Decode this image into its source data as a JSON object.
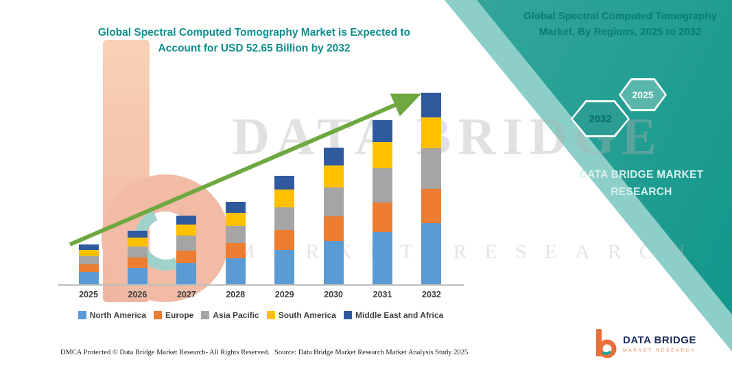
{
  "left_panel": {
    "title": "Global Spectral Computed Tomography Market is Expected to Account for USD 52.65 Billion by 2032",
    "footer_left": "DMCA Protected © Data Bridge Market Research-  All Rights Reserved.",
    "footer_source": "Source: Data Bridge Market Research  Market Analysis Study 2025"
  },
  "right_panel": {
    "title": "Global Spectral Computed Tomography Market, By Regions, 2025 to 2032",
    "hexagons": {
      "back_label": "2032",
      "front_label": "2025"
    },
    "brand_lines": "DATA BRIDGE MARKET RESEARCH"
  },
  "watermark": {
    "line1": "DATA BRIDGE",
    "line2": "MARKET RESEARCH"
  },
  "logo": {
    "name_line": "DATA BRIDGE",
    "sub_line": "MARKET RESEARCH"
  },
  "accent": {
    "teal": "#11968b",
    "arrow_green": "#6fa83f",
    "orange": "#e8703a",
    "navy": "#1d2e5e"
  },
  "chart_data": {
    "type": "bar",
    "stacked": true,
    "title": "Global Spectral Computed Tomography Market is Expected to Account for USD 52.65 Billion by 2032",
    "unit": "USD Billion",
    "categories": [
      "2025",
      "2026",
      "2027",
      "2028",
      "2029",
      "2030",
      "2031",
      "2032"
    ],
    "series": [
      {
        "name": "North America",
        "color": "#5b9bd5",
        "values": [
          3.6,
          4.8,
          6.1,
          7.3,
          9.6,
          12.0,
          14.4,
          16.9
        ]
      },
      {
        "name": "Europe",
        "color": "#ed7d31",
        "values": [
          2.0,
          2.7,
          3.4,
          4.1,
          5.4,
          6.8,
          8.1,
          9.5
        ]
      },
      {
        "name": "Asia Pacific",
        "color": "#a5a5a5",
        "values": [
          2.3,
          3.1,
          4.0,
          4.8,
          6.3,
          7.9,
          9.5,
          11.0
        ]
      },
      {
        "name": "South America",
        "color": "#ffc000",
        "values": [
          1.8,
          2.4,
          3.0,
          3.6,
          4.8,
          6.0,
          7.2,
          8.4
        ]
      },
      {
        "name": "Middle East and Africa",
        "color": "#2f5b9e",
        "values": [
          1.4,
          1.9,
          2.5,
          3.0,
          3.9,
          4.9,
          5.9,
          6.85
        ]
      }
    ],
    "totals": [
      11.1,
      14.9,
      19.0,
      22.8,
      30.0,
      37.6,
      45.1,
      52.65
    ],
    "ylim": [
      0,
      55
    ],
    "grid": false,
    "legend_position": "bottom",
    "annotations": [
      "upward trend arrow"
    ]
  }
}
